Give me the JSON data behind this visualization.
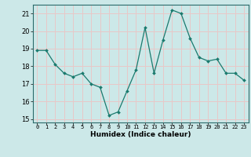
{
  "x": [
    0,
    1,
    2,
    3,
    4,
    5,
    6,
    7,
    8,
    9,
    10,
    11,
    12,
    13,
    14,
    15,
    16,
    17,
    18,
    19,
    20,
    21,
    22,
    23
  ],
  "y": [
    18.9,
    18.9,
    18.1,
    17.6,
    17.4,
    17.6,
    17.0,
    16.8,
    15.2,
    15.4,
    16.6,
    17.8,
    20.2,
    17.6,
    19.5,
    21.2,
    21.0,
    19.6,
    18.5,
    18.3,
    18.4,
    17.6,
    17.6,
    17.2
  ],
  "xlabel": "Humidex (Indice chaleur)",
  "ylim": [
    14.8,
    21.5
  ],
  "yticks": [
    15,
    16,
    17,
    18,
    19,
    20,
    21
  ],
  "xticks": [
    0,
    1,
    2,
    3,
    4,
    5,
    6,
    7,
    8,
    9,
    10,
    11,
    12,
    13,
    14,
    15,
    16,
    17,
    18,
    19,
    20,
    21,
    22,
    23
  ],
  "line_color": "#1a7a6e",
  "marker_color": "#1a7a6e",
  "bg_color": "#cce8e8",
  "grid_color": "#e8c8c8",
  "title": ""
}
